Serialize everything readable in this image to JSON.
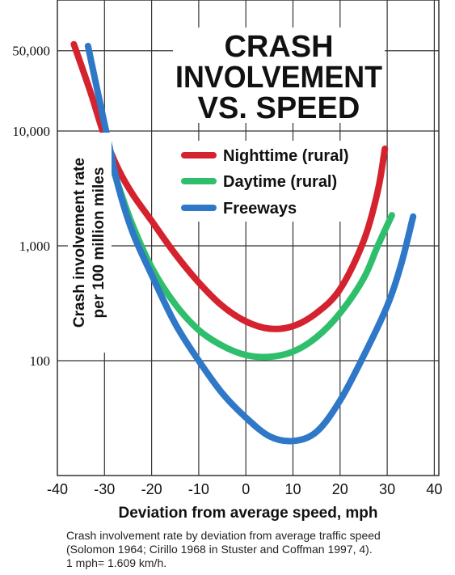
{
  "chart_data": {
    "type": "line",
    "title": "CRASH INVOLVEMENT VS. SPEED",
    "title_lines": [
      "CRASH",
      "INVOLVEMENT",
      "VS. SPEED"
    ],
    "xlabel": "Deviation from average speed, mph",
    "ylabel_lines": [
      "Crash involvement rate",
      "per 100 million miles"
    ],
    "x_ticks": [
      -40,
      -30,
      -20,
      -10,
      0,
      10,
      20,
      30,
      40
    ],
    "x_tick_labels": [
      "-40",
      "-30",
      "-20",
      "-10",
      "0",
      "10",
      "20",
      "30",
      "40"
    ],
    "y_scale": "log",
    "y_ticks": [
      100,
      1000,
      10000,
      50000
    ],
    "y_tick_labels": [
      "100",
      "1,000",
      "10,000",
      "50,000"
    ],
    "xlim": [
      -40,
      40
    ],
    "ylim": [
      10,
      100000
    ],
    "grid": true,
    "legend_position": "top-center",
    "series": [
      {
        "name": "Nighttime (rural)",
        "color": "#d4232f",
        "x": [
          -36.5,
          -33,
          -30,
          -27,
          -24,
          -20,
          -15,
          -10,
          -5,
          0,
          5,
          10,
          15,
          20,
          25,
          28,
          29.5
        ],
        "y": [
          57000,
          22000,
          9000,
          4600,
          2800,
          1650,
          850,
          480,
          300,
          220,
          190,
          200,
          260,
          420,
          1100,
          3000,
          7000
        ]
      },
      {
        "name": "Daytime (rural)",
        "color": "#2fbf6c",
        "x": [
          -30,
          -27,
          -24,
          -20,
          -15,
          -10,
          -5,
          0,
          5,
          10,
          15,
          20,
          25,
          28,
          31
        ],
        "y": [
          8000,
          3300,
          1500,
          650,
          310,
          185,
          135,
          112,
          108,
          120,
          160,
          260,
          520,
          1000,
          1850
        ]
      },
      {
        "name": "Freeways",
        "color": "#2f78c8",
        "x": [
          -33.5,
          -31,
          -29,
          -27,
          -24,
          -20,
          -15,
          -10,
          -5,
          0,
          5,
          10,
          15,
          20,
          25,
          30,
          33,
          35.5
        ],
        "y": [
          55000,
          18000,
          7500,
          3200,
          1300,
          560,
          210,
          100,
          52,
          32,
          22,
          20,
          24,
          45,
          110,
          300,
          700,
          1800
        ]
      }
    ]
  },
  "caption_lines": [
    "Crash involvement rate by deviation from average traffic speed",
    "(Solomon 1964; Cirillo 1968 in Stuster and Coffman 1997, 4).",
    "1 mph= 1.609 km/h."
  ]
}
